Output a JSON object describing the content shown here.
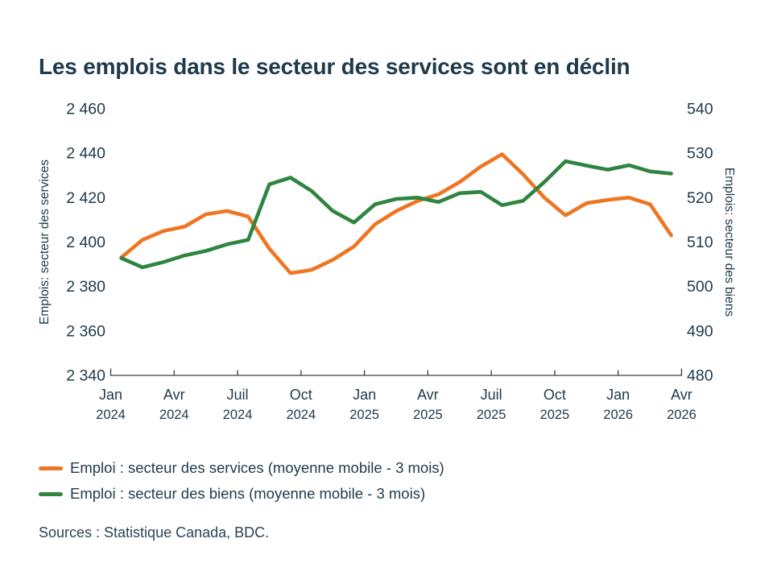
{
  "title": "Les emplois dans le secteur des services sont en déclin",
  "source_note": "Sources : Statistique Canada, BDC.",
  "colors": {
    "services_orange": "#EE7623",
    "biens_green": "#2F8540",
    "text_dark": "#1E3A4B",
    "axis_line": "#3C3C3C"
  },
  "legend": {
    "items": [
      {
        "label": "Emploi : secteur des services (moyenne mobile - 3 mois)",
        "color": "#EE7623"
      },
      {
        "label": "Emploi : secteur des biens (moyenne mobile - 3 mois)",
        "color": "#2F8540"
      }
    ]
  },
  "chart_data": {
    "type": "line",
    "title": "Les emplois dans le secteur des services sont en déclin",
    "grid": false,
    "legend_position": "bottom-left",
    "x_tick_labels": [
      {
        "month": "Jan",
        "year": "2024"
      },
      {
        "month": "Avr",
        "year": "2024"
      },
      {
        "month": "Juil",
        "year": "2024"
      },
      {
        "month": "Oct",
        "year": "2024"
      },
      {
        "month": "Jan",
        "year": "2025"
      },
      {
        "month": "Avr",
        "year": "2025"
      },
      {
        "month": "Juil",
        "year": "2025"
      },
      {
        "month": "Oct",
        "year": "2025"
      },
      {
        "month": "Jan",
        "year": "2026"
      },
      {
        "month": "Avr",
        "year": "2026"
      }
    ],
    "left_axis": {
      "title": "Emplois: secteur des services",
      "range": [
        2340,
        2460
      ],
      "ticks": [
        {
          "label": "2 460",
          "value": 2460
        },
        {
          "label": "2 440",
          "value": 2440
        },
        {
          "label": "2 420",
          "value": 2420
        },
        {
          "label": "2 400",
          "value": 2400
        },
        {
          "label": "2 380",
          "value": 2380
        },
        {
          "label": "2 360",
          "value": 2360
        },
        {
          "label": "2 340",
          "value": 2340
        }
      ]
    },
    "right_axis": {
      "title": "Emplois: secteur des biens",
      "range": [
        480,
        540
      ],
      "ticks": [
        {
          "label": "540",
          "value": 540
        },
        {
          "label": "530",
          "value": 530
        },
        {
          "label": "520",
          "value": 520
        },
        {
          "label": "510",
          "value": 510
        },
        {
          "label": "500",
          "value": 500
        },
        {
          "label": "490",
          "value": 490
        },
        {
          "label": "480",
          "value": 480
        }
      ]
    },
    "x": [
      "Jan 2024",
      "Fév 2024",
      "Mars 2024",
      "Avr 2024",
      "Mai 2024",
      "Juin 2024",
      "Juil 2024",
      "Août 2024",
      "Sept 2024",
      "Oct 2024",
      "Nov 2024",
      "Déc 2024",
      "Jan 2025",
      "Fév 2025",
      "Mars 2025",
      "Avr 2025",
      "Mai 2025",
      "Juin 2025",
      "Juil 2025",
      "Août 2025",
      "Sept 2025",
      "Oct 2025",
      "Nov 2025",
      "Déc 2025",
      "Jan 2026",
      "Fév 2026",
      "Mars 2026"
    ],
    "series": [
      {
        "name": "Emploi : secteur des services (moyenne mobile - 3 mois)",
        "axis": "left",
        "color": "#EE7623",
        "values": [
          2393,
          2401,
          2405,
          2407,
          2412.5,
          2414,
          2411.5,
          2397,
          2386,
          2387.5,
          2392,
          2398,
          2408,
          2414,
          2418.5,
          2421.5,
          2427,
          2434,
          2439.5,
          2430.5,
          2420,
          2412,
          2417.5,
          2419,
          2420,
          2417,
          2403
        ]
      },
      {
        "name": "Emploi : secteur des biens (moyenne mobile - 3 mois)",
        "axis": "right",
        "color": "#2F8540",
        "values": [
          506.4,
          504.3,
          505.5,
          507,
          508,
          509.5,
          510.5,
          523,
          524.5,
          521.5,
          517,
          514.4,
          518.5,
          519.7,
          520,
          519,
          521,
          521.3,
          518.3,
          519.3,
          523.5,
          528.2,
          527.2,
          526.3,
          527.3,
          525.9,
          525.4
        ]
      }
    ]
  }
}
